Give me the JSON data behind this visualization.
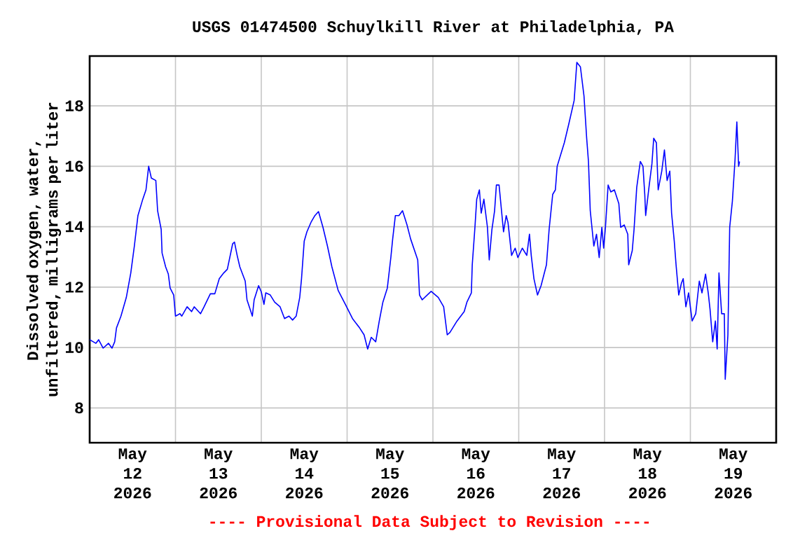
{
  "chart_data": {
    "type": "line",
    "title": "USGS 01474500 Schuylkill River at Philadelphia, PA",
    "ylabel": "Dissolved oxygen, water, unfiltered, milligrams per liter",
    "annotations": [
      "---- Provisional Data Subject to Revision ----"
    ],
    "xlim": [
      "2026-05-12T00:00",
      "2026-05-20T00:00"
    ],
    "xticks": [
      {
        "value": "2026-05-12T12:00",
        "label": "May 12 2026"
      },
      {
        "value": "2026-05-13T00:00",
        "label": null
      },
      {
        "value": "2026-05-13T12:00",
        "label": "May 13 2026"
      },
      {
        "value": "2026-05-14T00:00",
        "label": null
      },
      {
        "value": "2026-05-14T12:00",
        "label": "May 14 2026"
      },
      {
        "value": "2026-05-15T00:00",
        "label": null
      },
      {
        "value": "2026-05-15T12:00",
        "label": "May 15 2026"
      },
      {
        "value": "2026-05-16T00:00",
        "label": null
      },
      {
        "value": "2026-05-16T12:00",
        "label": "May 16 2026"
      },
      {
        "value": "2026-05-17T00:00",
        "label": null
      },
      {
        "value": "2026-05-17T12:00",
        "label": "May 17 2026"
      },
      {
        "value": "2026-05-18T00:00",
        "label": null
      },
      {
        "value": "2026-05-18T12:00",
        "label": "May 18 2026"
      },
      {
        "value": "2026-05-19T00:00",
        "label": null
      },
      {
        "value": "2026-05-19T12:00",
        "label": "May 19 2026"
      }
    ],
    "ylim": [
      6.85,
      19.65
    ],
    "yticks": [
      8,
      10,
      12,
      14,
      16,
      18
    ],
    "grid": true,
    "marker": "none",
    "line_style": "solid",
    "series": [
      {
        "color": "#0000ff",
        "x": [
          "2026-05-12T00:00",
          "2026-05-12T01:45",
          "2026-05-12T02:30",
          "2026-05-12T03:45",
          "2026-05-12T05:15",
          "2026-05-12T06:15",
          "2026-05-12T07:00",
          "2026-05-12T07:30",
          "2026-05-12T08:45",
          "2026-05-12T10:15",
          "2026-05-12T11:30",
          "2026-05-12T12:30",
          "2026-05-12T13:30",
          "2026-05-12T14:45",
          "2026-05-12T15:45",
          "2026-05-12T16:30",
          "2026-05-12T17:15",
          "2026-05-12T18:30",
          "2026-05-12T19:00",
          "2026-05-12T20:00",
          "2026-05-12T20:15",
          "2026-05-12T21:15",
          "2026-05-12T22:00",
          "2026-05-12T22:30",
          "2026-05-12T23:30",
          "2026-05-13T00:00",
          "2026-05-13T01:15",
          "2026-05-13T01:45",
          "2026-05-13T03:15",
          "2026-05-13T04:30",
          "2026-05-13T05:15",
          "2026-05-13T07:00",
          "2026-05-13T08:00",
          "2026-05-13T09:45",
          "2026-05-13T11:00",
          "2026-05-13T12:15",
          "2026-05-13T13:30",
          "2026-05-13T14:30",
          "2026-05-13T16:00",
          "2026-05-13T16:30",
          "2026-05-13T17:15",
          "2026-05-13T18:00",
          "2026-05-13T19:30",
          "2026-05-13T20:00",
          "2026-05-13T21:30",
          "2026-05-13T22:00",
          "2026-05-13T23:15",
          "2026-05-14T00:00",
          "2026-05-14T00:45",
          "2026-05-14T01:15",
          "2026-05-14T02:30",
          "2026-05-14T03:45",
          "2026-05-14T05:15",
          "2026-05-14T06:30",
          "2026-05-14T07:45",
          "2026-05-14T08:45",
          "2026-05-14T09:45",
          "2026-05-14T10:45",
          "2026-05-14T11:15",
          "2026-05-14T12:00",
          "2026-05-14T12:45",
          "2026-05-14T14:00",
          "2026-05-14T15:00",
          "2026-05-14T16:00",
          "2026-05-14T17:15",
          "2026-05-14T18:30",
          "2026-05-14T19:45",
          "2026-05-14T21:30",
          "2026-05-14T23:30",
          "2026-05-15T01:30",
          "2026-05-15T03:30",
          "2026-05-15T04:45",
          "2026-05-15T05:45",
          "2026-05-15T06:45",
          "2026-05-15T08:00",
          "2026-05-15T09:00",
          "2026-05-15T10:00",
          "2026-05-15T11:15",
          "2026-05-15T12:15",
          "2026-05-15T12:45",
          "2026-05-15T13:30",
          "2026-05-15T14:30",
          "2026-05-15T15:30",
          "2026-05-15T16:45",
          "2026-05-15T17:45",
          "2026-05-15T19:45",
          "2026-05-15T20:15",
          "2026-05-15T21:00",
          "2026-05-15T23:30",
          "2026-05-16T01:30",
          "2026-05-16T03:00",
          "2026-05-16T04:00",
          "2026-05-16T04:45",
          "2026-05-16T06:45",
          "2026-05-16T08:45",
          "2026-05-16T09:30",
          "2026-05-16T10:45",
          "2026-05-16T11:00",
          "2026-05-16T11:45",
          "2026-05-16T12:15",
          "2026-05-16T13:00",
          "2026-05-16T13:30",
          "2026-05-16T14:15",
          "2026-05-16T15:15",
          "2026-05-16T15:45",
          "2026-05-16T16:30",
          "2026-05-16T17:15",
          "2026-05-16T17:45",
          "2026-05-16T18:30",
          "2026-05-16T19:15",
          "2026-05-16T19:45",
          "2026-05-16T20:30",
          "2026-05-16T21:00",
          "2026-05-16T22:00",
          "2026-05-16T23:00",
          "2026-05-16T23:45",
          "2026-05-17T01:00",
          "2026-05-17T02:15",
          "2026-05-17T03:00",
          "2026-05-17T03:30",
          "2026-05-17T04:15",
          "2026-05-17T05:15",
          "2026-05-17T06:15",
          "2026-05-17T07:45",
          "2026-05-17T08:30",
          "2026-05-17T09:30",
          "2026-05-17T10:15",
          "2026-05-17T10:45",
          "2026-05-17T11:45",
          "2026-05-17T12:45",
          "2026-05-17T14:00",
          "2026-05-17T15:30",
          "2026-05-17T16:15",
          "2026-05-17T17:15",
          "2026-05-17T18:15",
          "2026-05-17T19:00",
          "2026-05-17T19:30",
          "2026-05-17T20:00",
          "2026-05-17T21:00",
          "2026-05-17T21:45",
          "2026-05-17T22:30",
          "2026-05-17T23:15",
          "2026-05-17T23:45",
          "2026-05-18T00:15",
          "2026-05-18T01:00",
          "2026-05-18T01:45",
          "2026-05-18T02:45",
          "2026-05-18T04:00",
          "2026-05-18T04:30",
          "2026-05-18T05:30",
          "2026-05-18T06:30",
          "2026-05-18T06:45",
          "2026-05-18T07:45",
          "2026-05-18T08:15",
          "2026-05-18T09:00",
          "2026-05-18T10:00",
          "2026-05-18T10:45",
          "2026-05-18T11:15",
          "2026-05-18T11:30",
          "2026-05-18T12:30",
          "2026-05-18T13:15",
          "2026-05-18T13:45",
          "2026-05-18T14:30",
          "2026-05-18T15:00",
          "2026-05-18T16:00",
          "2026-05-18T16:45",
          "2026-05-18T17:30",
          "2026-05-18T18:15",
          "2026-05-18T18:45",
          "2026-05-18T19:30",
          "2026-05-18T20:00",
          "2026-05-18T20:45",
          "2026-05-18T21:30",
          "2026-05-18T22:00",
          "2026-05-18T22:45",
          "2026-05-18T23:30",
          "2026-05-19T00:30",
          "2026-05-19T01:30",
          "2026-05-19T02:30",
          "2026-05-19T03:15",
          "2026-05-19T04:15",
          "2026-05-19T05:00",
          "2026-05-19T05:30",
          "2026-05-19T06:15",
          "2026-05-19T07:00",
          "2026-05-19T07:30",
          "2026-05-19T08:00",
          "2026-05-19T08:45",
          "2026-05-19T09:30",
          "2026-05-19T09:45",
          "2026-05-19T10:30",
          "2026-05-19T11:00",
          "2026-05-19T11:45",
          "2026-05-19T12:30",
          "2026-05-19T13:00",
          "2026-05-19T13:30",
          "2026-05-19T13:45"
        ],
        "values": [
          10.26,
          10.14,
          10.26,
          9.98,
          10.14,
          9.98,
          10.19,
          10.65,
          11.04,
          11.66,
          12.47,
          13.36,
          14.37,
          14.87,
          15.22,
          16.0,
          15.61,
          15.53,
          14.53,
          13.91,
          13.13,
          12.67,
          12.43,
          11.97,
          11.74,
          11.04,
          11.12,
          11.04,
          11.35,
          11.19,
          11.35,
          11.12,
          11.35,
          11.78,
          11.78,
          12.28,
          12.47,
          12.59,
          13.44,
          13.49,
          13.05,
          12.67,
          12.2,
          11.58,
          11.04,
          11.58,
          12.05,
          11.84,
          11.43,
          11.81,
          11.74,
          11.5,
          11.35,
          10.96,
          11.04,
          10.91,
          11.04,
          11.66,
          12.28,
          13.52,
          13.83,
          14.17,
          14.37,
          14.5,
          13.98,
          13.36,
          12.67,
          11.89,
          11.43,
          10.96,
          10.65,
          10.42,
          9.95,
          10.34,
          10.19,
          10.88,
          11.5,
          11.97,
          13.0,
          13.6,
          14.37,
          14.37,
          14.53,
          14.06,
          13.6,
          12.9,
          11.74,
          11.58,
          11.86,
          11.66,
          11.35,
          10.42,
          10.5,
          10.88,
          11.19,
          11.5,
          11.81,
          12.74,
          13.98,
          14.91,
          15.22,
          14.45,
          14.91,
          13.98,
          12.9,
          13.91,
          14.53,
          15.38,
          15.38,
          14.45,
          13.83,
          14.37,
          14.14,
          13.05,
          13.29,
          12.98,
          13.29,
          13.05,
          13.75,
          13.05,
          12.28,
          11.74,
          12.05,
          12.74,
          13.91,
          15.07,
          15.22,
          16.0,
          16.39,
          16.78,
          17.4,
          18.18,
          19.44,
          19.29,
          18.33,
          16.93,
          16.16,
          14.53,
          13.36,
          13.75,
          12.98,
          13.98,
          13.29,
          13.98,
          15.38,
          15.15,
          15.22,
          14.76,
          13.98,
          14.06,
          13.75,
          12.74,
          13.21,
          13.91,
          15.3,
          16.16,
          16.0,
          15.07,
          14.37,
          15.38,
          16.08,
          16.93,
          16.78,
          15.22,
          15.84,
          16.54,
          15.53,
          15.84,
          14.45,
          13.52,
          12.74,
          11.74,
          12.13,
          12.28,
          11.35,
          11.81,
          10.88,
          11.12,
          12.2,
          11.81,
          12.43,
          11.81,
          11.27,
          10.19,
          10.88,
          9.95,
          12.47,
          11.12,
          11.12,
          8.95,
          10.42,
          13.98,
          14.84,
          16.23,
          17.47,
          16.0,
          16.16
        ]
      }
    ]
  }
}
